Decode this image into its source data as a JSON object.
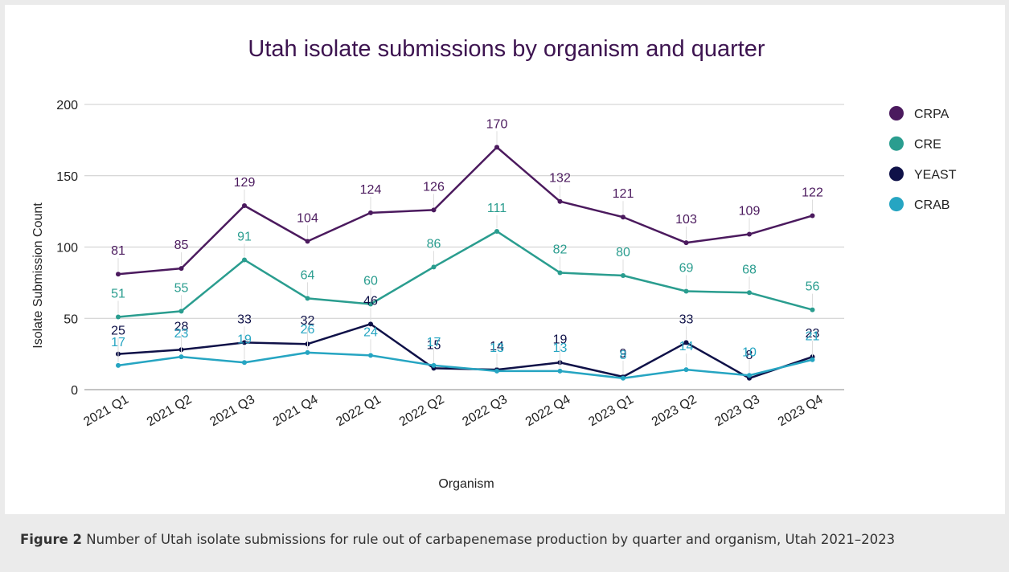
{
  "chart_data": {
    "type": "line",
    "title": "Utah isolate submissions by organism and quarter",
    "xlabel": "Organism",
    "ylabel": "Isolate Submission Count",
    "categories": [
      "2021 Q1",
      "2021 Q2",
      "2021 Q3",
      "2021 Q4",
      "2022 Q1",
      "2022 Q2",
      "2022 Q3",
      "2022 Q4",
      "2023 Q1",
      "2023 Q2",
      "2023 Q3",
      "2023 Q4"
    ],
    "series": [
      {
        "name": "CRPA",
        "color": "#4b1a5e",
        "values": [
          81,
          85,
          129,
          104,
          124,
          126,
          170,
          132,
          121,
          103,
          109,
          122
        ]
      },
      {
        "name": "CRE",
        "color": "#2a9d8f",
        "values": [
          51,
          55,
          91,
          64,
          60,
          86,
          111,
          82,
          80,
          69,
          68,
          56
        ]
      },
      {
        "name": "YEAST",
        "color": "#0f1148",
        "values": [
          25,
          28,
          33,
          32,
          46,
          15,
          14,
          19,
          9,
          33,
          8,
          23
        ]
      },
      {
        "name": "CRAB",
        "color": "#26a5c2",
        "values": [
          17,
          23,
          19,
          26,
          24,
          17,
          13,
          13,
          8,
          14,
          10,
          21
        ]
      }
    ],
    "ylim": [
      0,
      200
    ],
    "yticks": [
      0,
      50,
      100,
      150,
      200
    ],
    "grid": true,
    "legend": "right"
  },
  "caption": {
    "label": "Figure 2",
    "text": "Number of Utah isolate submissions for rule out of carbapenemase production by quarter and organism, Utah 2021–2023"
  }
}
